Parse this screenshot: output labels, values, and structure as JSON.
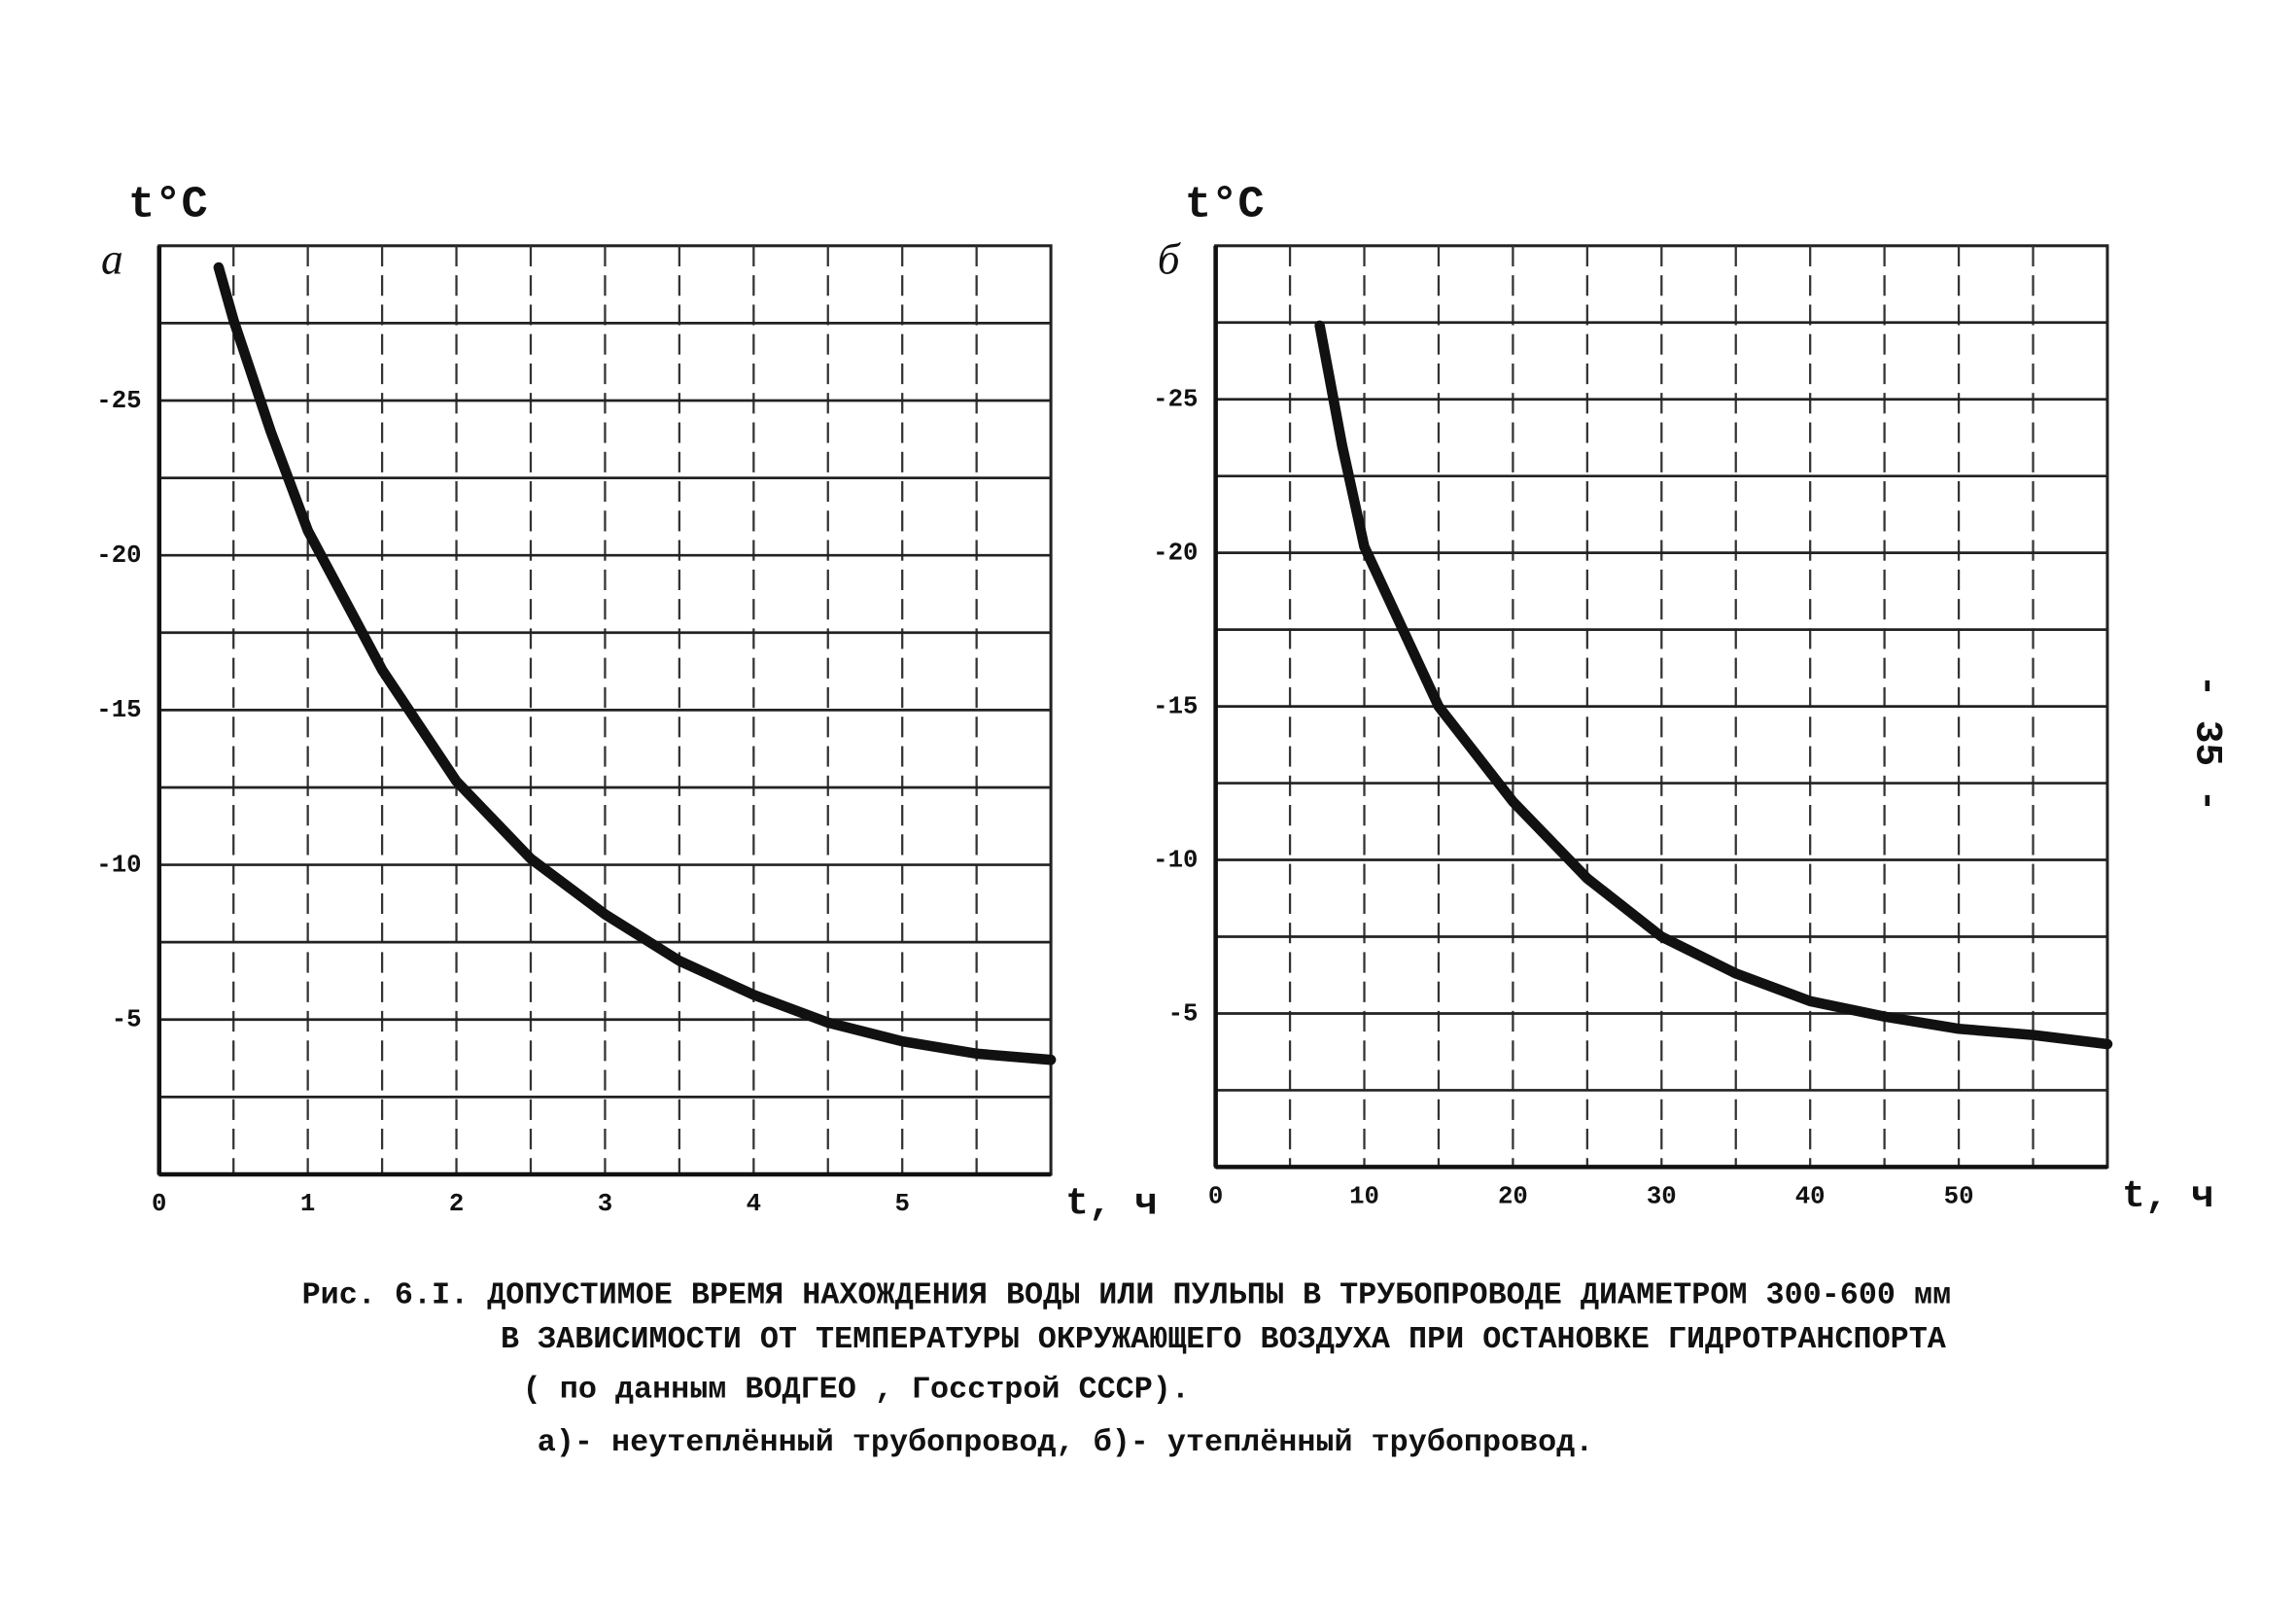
{
  "chart_data": [
    {
      "type": "line",
      "panel_label": "а",
      "y_label": "t°C",
      "x_label": "t, ч",
      "xlim": [
        0,
        6
      ],
      "ylim": [
        0,
        -30
      ],
      "xticks": [
        0,
        {
          "value": 0.5,
          "label": null
        },
        1,
        {
          "value": 1.5,
          "label": null
        },
        2,
        {
          "value": 2.5,
          "label": null
        },
        3,
        {
          "value": 3.5,
          "label": null
        },
        4,
        {
          "value": 4.5,
          "label": null
        },
        5,
        {
          "value": 5.5,
          "label": null
        }
      ],
      "yticks": [
        {
          "value": -2.5,
          "label": null
        },
        -5,
        {
          "value": -7.5,
          "label": null
        },
        -10,
        {
          "value": -12.5,
          "label": null
        },
        -15,
        {
          "value": -17.5,
          "label": null
        },
        -20,
        {
          "value": -22.5,
          "label": null
        },
        -25,
        {
          "value": -27.5,
          "label": null
        }
      ],
      "grid": true,
      "color": "#111111",
      "x": [
        0.4,
        0.5,
        0.75,
        1,
        1.5,
        2,
        2.5,
        3,
        3.5,
        4,
        4.5,
        5,
        5.5,
        6
      ],
      "values": [
        -29.3,
        -27.6,
        -24,
        -20.8,
        -16.3,
        -12.7,
        -10.2,
        -8.4,
        -6.9,
        -5.8,
        -4.9,
        -4.3,
        -3.9,
        -3.7
      ]
    },
    {
      "type": "line",
      "panel_label": "б",
      "y_label": "t°C",
      "x_label": "t, ч",
      "xlim": [
        0,
        60
      ],
      "ylim": [
        0,
        -30
      ],
      "xticks": [
        0,
        {
          "value": 5,
          "label": null
        },
        10,
        {
          "value": 15,
          "label": null
        },
        20,
        {
          "value": 25,
          "label": null
        },
        30,
        {
          "value": 35,
          "label": null
        },
        40,
        {
          "value": 45,
          "label": null
        },
        50,
        {
          "value": 55,
          "label": null
        }
      ],
      "yticks": [
        {
          "value": -2.5,
          "label": null
        },
        -5,
        {
          "value": -7.5,
          "label": null
        },
        -10,
        {
          "value": -12.5,
          "label": null
        },
        -15,
        {
          "value": -17.5,
          "label": null
        },
        -20,
        {
          "value": -22.5,
          "label": null
        },
        -25,
        {
          "value": -27.5,
          "label": null
        }
      ],
      "grid": true,
      "color": "#111111",
      "x": [
        7,
        8.5,
        10,
        15,
        20,
        25,
        30,
        35,
        40,
        45,
        50,
        55,
        60
      ],
      "values": [
        -27.4,
        -23.5,
        -20.2,
        -15,
        -11.9,
        -9.4,
        -7.5,
        -6.3,
        -5.4,
        -4.9,
        -4.5,
        -4.3,
        -4.0
      ]
    }
  ],
  "caption": [
    "Рис. 6.I. ДОПУСТИМОЕ ВРЕМЯ НАХОЖДЕНИЯ ВОДЫ ИЛИ ПУЛЬПЫ В ТРУБОПРОВОДЕ ДИАМЕТРОМ 300-600 мм",
    "В ЗАВИСИМОСТИ ОТ ТЕМПЕРАТУРЫ ОКРУЖАЮЩЕГО ВОЗДУХА ПРИ ОСТАНОВКЕ ГИДРОТРАНСПОРТА",
    "( по данным ВОДГЕО , Госстрой СССР).",
    "а)- неутеплённый трубопровод,  б)- утеплённый трубопровод."
  ],
  "page_number": "- 35 -"
}
